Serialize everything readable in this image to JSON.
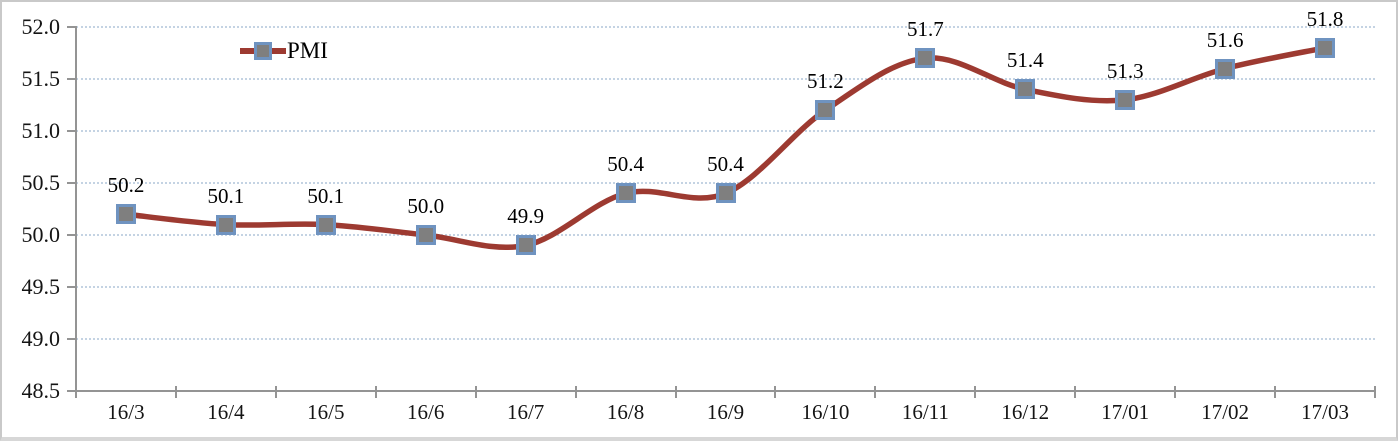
{
  "chart_data": {
    "type": "line",
    "title": "",
    "categories": [
      "16/3",
      "16/4",
      "16/5",
      "16/6",
      "16/7",
      "16/8",
      "16/9",
      "16/10",
      "16/11",
      "16/12",
      "17/01",
      "17/02",
      "17/03"
    ],
    "series": [
      {
        "name": "PMI",
        "values": [
          50.2,
          50.1,
          50.1,
          50.0,
          49.9,
          50.4,
          50.4,
          51.2,
          51.7,
          51.4,
          51.3,
          51.6,
          51.8
        ],
        "point_labels": [
          "50.2",
          "50.1",
          "50.1",
          "50.0",
          "49.9",
          "50.4",
          "50.4",
          "51.2",
          "51.7",
          "51.4",
          "51.3",
          "51.6",
          "51.8"
        ]
      }
    ],
    "xlabel": "",
    "ylabel": "",
    "ylim": [
      48.5,
      52.0
    ],
    "y_tick_labels": [
      "52.0",
      "51.5",
      "51.0",
      "50.5",
      "50.0",
      "49.5",
      "49.0",
      "48.5"
    ],
    "grid": "horizontal-dotted",
    "legend_position": "inside-top-left",
    "line_smooth": true,
    "colors": {
      "line": "#9d3a31",
      "marker_fill": "#7f7f7f",
      "marker_border": "#6f93c0",
      "gridline": "#c4d3e3",
      "axis": "#949494",
      "text": "#141414"
    }
  },
  "legend": {
    "label": "PMI"
  }
}
